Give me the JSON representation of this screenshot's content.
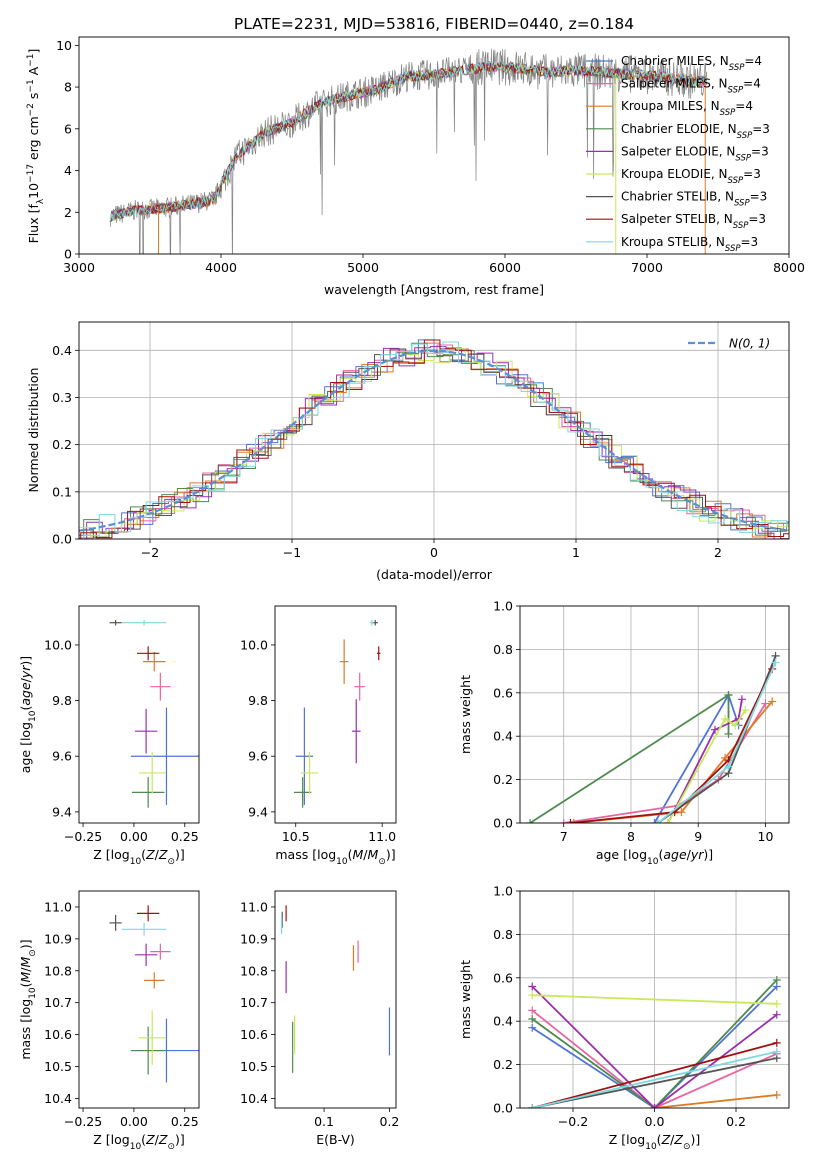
{
  "figure": {
    "title": "PLATE=2231, MJD=53816, FIBERID=0440, z=0.184"
  },
  "colors": {
    "Chabrier MILES": "#4f74d6",
    "Salpeter MILES": "#e8659f",
    "Kroupa MILES": "#e07a24",
    "Chabrier ELODIE": "#4f8a4f",
    "Salpeter ELODIE": "#9b2fb0",
    "Kroupa ELODIE": "#c9e85a",
    "Chabrier STELIB": "#555555",
    "Salpeter STELIB": "#a01010",
    "Kroupa STELIB": "#7fd9e0",
    "data": "#808080",
    "gaussian": "#5b8fd6"
  },
  "chart_data": [
    {
      "id": "spectrum",
      "type": "line",
      "title": "PLATE=2231, MJD=53816, FIBERID=0440, z=0.184",
      "xlabel": "wavelength [Angstrom, rest frame]",
      "ylabel": "Flux [f_λ 10^-17 erg cm^-2 s^-1 A^-1]",
      "xlim": [
        3000,
        8000
      ],
      "ylim": [
        0,
        10.4
      ],
      "xticks": [
        3000,
        4000,
        5000,
        6000,
        7000,
        8000
      ],
      "yticks": [
        0,
        2,
        4,
        6,
        8,
        10
      ],
      "legend_position": "top-right",
      "legend": [
        {
          "label": "Chabrier MILES, N_SSP=4",
          "base": "Chabrier MILES, N",
          "sub": "SSP",
          "tail": "=4"
        },
        {
          "label": "Salpeter MILES, N_SSP=4",
          "base": "Salpeter MILES, N",
          "sub": "SSP",
          "tail": "=4"
        },
        {
          "label": "Kroupa MILES, N_SSP=4",
          "base": "Kroupa MILES, N",
          "sub": "SSP",
          "tail": "=4"
        },
        {
          "label": "Chabrier ELODIE, N_SSP=3",
          "base": "Chabrier ELODIE, N",
          "sub": "SSP",
          "tail": "=3"
        },
        {
          "label": "Salpeter ELODIE, N_SSP=3",
          "base": "Salpeter ELODIE, N",
          "sub": "SSP",
          "tail": "=3"
        },
        {
          "label": "Kroupa ELODIE, N_SSP=3",
          "base": "Kroupa ELODIE, N",
          "sub": "SSP",
          "tail": "=3"
        },
        {
          "label": "Chabrier STELIB, N_SSP=3",
          "base": "Chabrier STELIB, N",
          "sub": "SSP",
          "tail": "=3"
        },
        {
          "label": "Salpeter STELIB, N_SSP=3",
          "base": "Salpeter STELIB, N",
          "sub": "SSP",
          "tail": "=3"
        },
        {
          "label": "Kroupa STELIB, N_SSP=3",
          "base": "Kroupa STELIB, N",
          "sub": "SSP",
          "tail": "=3"
        }
      ],
      "continuum_x": [
        3220,
        3400,
        3600,
        3800,
        3950,
        4100,
        4300,
        4500,
        4700,
        4900,
        5100,
        5300,
        5500,
        5700,
        5900,
        6100,
        6300,
        6500,
        6700,
        6900,
        7100,
        7300,
        7420
      ],
      "continuum_y": [
        1.8,
        2.1,
        2.2,
        2.4,
        2.6,
        4.6,
        5.8,
        6.3,
        7.2,
        7.6,
        7.9,
        8.5,
        8.6,
        8.8,
        9.0,
        8.9,
        8.7,
        8.8,
        8.7,
        8.6,
        8.5,
        8.3,
        8.3
      ]
    },
    {
      "id": "residuals",
      "type": "line",
      "xlabel": "(data-model)/error",
      "ylabel": "Normed distribution",
      "xlim": [
        -2.5,
        2.5
      ],
      "ylim": [
        0,
        0.46
      ],
      "xticks": [
        -2,
        -1,
        0,
        1,
        2
      ],
      "yticks": [
        0.0,
        0.1,
        0.2,
        0.3,
        0.4
      ],
      "legend_position": "top-right",
      "gaussian_label": "N(0, 1)",
      "grid": true
    },
    {
      "id": "age-vs-Z",
      "type": "scatter",
      "xlabel": "Z [log10(Z/Z⊙)]",
      "ylabel": "age [log10(age/yr)]",
      "xlim": [
        -0.27,
        0.32
      ],
      "ylim": [
        9.36,
        10.14
      ],
      "xticks": [
        -0.25,
        0.0,
        0.25
      ],
      "yticks": [
        9.4,
        9.6,
        9.8,
        10.0
      ],
      "points": [
        {
          "model": "Chabrier MILES",
          "x": 0.16,
          "y": 9.6,
          "xerr": 0.35,
          "yerr": 0.35
        },
        {
          "model": "Salpeter MILES",
          "x": 0.13,
          "y": 9.85,
          "xerr": 0.1,
          "yerr": 0.1
        },
        {
          "model": "Kroupa MILES",
          "x": 0.1,
          "y": 9.94,
          "xerr": 0.11,
          "yerr": 0.07
        },
        {
          "model": "Chabrier ELODIE",
          "x": 0.07,
          "y": 9.47,
          "xerr": 0.16,
          "yerr": 0.11
        },
        {
          "model": "Salpeter ELODIE",
          "x": 0.06,
          "y": 9.69,
          "xerr": 0.11,
          "yerr": 0.16
        },
        {
          "model": "Kroupa ELODIE",
          "x": 0.09,
          "y": 9.54,
          "xerr": 0.13,
          "yerr": 0.15
        },
        {
          "model": "Chabrier STELIB",
          "x": -0.09,
          "y": 10.08,
          "xerr": 0.06,
          "yerr": 0.02
        },
        {
          "model": "Salpeter STELIB",
          "x": 0.07,
          "y": 9.97,
          "xerr": 0.11,
          "yerr": 0.05
        },
        {
          "model": "Kroupa STELIB",
          "x": 0.05,
          "y": 10.08,
          "xerr": 0.22,
          "yerr": 0.02
        }
      ]
    },
    {
      "id": "age-vs-mass",
      "type": "scatter",
      "xlabel": "mass [log10(M/M⊙)]",
      "ylabel": "",
      "xlim": [
        10.38,
        11.08
      ],
      "ylim": [
        9.36,
        10.14
      ],
      "xticks": [
        10.5,
        11.0
      ],
      "yticks": [
        9.4,
        9.6,
        9.8,
        10.0
      ],
      "points": [
        {
          "model": "Chabrier MILES",
          "x": 10.55,
          "y": 9.6,
          "xerr": 0.1,
          "yerr": 0.35
        },
        {
          "model": "Salpeter MILES",
          "x": 10.87,
          "y": 9.85,
          "xerr": 0.06,
          "yerr": 0.1
        },
        {
          "model": "Kroupa MILES",
          "x": 10.78,
          "y": 9.94,
          "xerr": 0.05,
          "yerr": 0.16
        },
        {
          "model": "Chabrier ELODIE",
          "x": 10.54,
          "y": 9.47,
          "xerr": 0.1,
          "yerr": 0.11
        },
        {
          "model": "Salpeter ELODIE",
          "x": 10.85,
          "y": 9.69,
          "xerr": 0.05,
          "yerr": 0.23
        },
        {
          "model": "Kroupa ELODIE",
          "x": 10.58,
          "y": 9.54,
          "xerr": 0.1,
          "yerr": 0.15
        },
        {
          "model": "Chabrier STELIB",
          "x": 10.96,
          "y": 10.08,
          "xerr": 0.03,
          "yerr": 0.02
        },
        {
          "model": "Salpeter STELIB",
          "x": 10.98,
          "y": 9.97,
          "xerr": 0.02,
          "yerr": 0.05
        },
        {
          "model": "Kroupa STELIB",
          "x": 10.94,
          "y": 10.08,
          "xerr": 0.02,
          "yerr": 0.02
        }
      ]
    },
    {
      "id": "weight-vs-age",
      "type": "line",
      "xlabel": "age [log10(age/yr)]",
      "ylabel": "mass weight",
      "xlim": [
        6.35,
        10.35
      ],
      "ylim": [
        0,
        1.0
      ],
      "xticks": [
        7,
        8,
        9,
        10
      ],
      "yticks": [
        0.0,
        0.2,
        0.4,
        0.6,
        0.8,
        1.0
      ],
      "grid": true,
      "series": [
        {
          "model": "Chabrier MILES",
          "x": [
            8.35,
            9.45,
            9.6
          ],
          "y": [
            0.0,
            0.59,
            0.45
          ]
        },
        {
          "model": "Salpeter MILES",
          "x": [
            7.0,
            8.7,
            9.3,
            10.0
          ],
          "y": [
            0.0,
            0.08,
            0.2,
            0.55
          ]
        },
        {
          "model": "Kroupa MILES",
          "x": [
            7.15,
            8.75,
            9.4,
            10.1
          ],
          "y": [
            0.0,
            0.05,
            0.3,
            0.56
          ]
        },
        {
          "model": "Chabrier ELODIE",
          "x": [
            6.5,
            9.45,
            9.45
          ],
          "y": [
            0.0,
            0.59,
            0.41
          ]
        },
        {
          "model": "Salpeter ELODIE",
          "x": [
            8.55,
            9.25,
            9.6,
            9.65
          ],
          "y": [
            0.0,
            0.43,
            0.48,
            0.57
          ]
        },
        {
          "model": "Kroupa ELODIE",
          "x": [
            8.55,
            9.4,
            9.55,
            9.7
          ],
          "y": [
            0.0,
            0.48,
            0.45,
            0.52
          ]
        },
        {
          "model": "Chabrier STELIB",
          "x": [
            8.4,
            9.45,
            10.15
          ],
          "y": [
            0.0,
            0.23,
            0.77
          ]
        },
        {
          "model": "Salpeter STELIB",
          "x": [
            7.1,
            8.65,
            9.45,
            10.1
          ],
          "y": [
            0.0,
            0.05,
            0.29,
            0.71
          ]
        },
        {
          "model": "Kroupa STELIB",
          "x": [
            8.4,
            9.45,
            10.15
          ],
          "y": [
            0.0,
            0.26,
            0.74
          ]
        }
      ]
    },
    {
      "id": "mass-vs-Z",
      "type": "scatter",
      "xlabel": "Z [log10(Z/Z⊙)]",
      "ylabel": "mass [log10(M/M⊙)]",
      "xlim": [
        -0.27,
        0.32
      ],
      "ylim": [
        10.37,
        11.05
      ],
      "xticks": [
        -0.25,
        0.0,
        0.25
      ],
      "yticks": [
        10.4,
        10.5,
        10.6,
        10.7,
        10.8,
        10.9,
        11.0
      ],
      "points": [
        {
          "model": "Chabrier MILES",
          "x": 0.16,
          "y": 10.55,
          "xerr": 0.35,
          "yerr": 0.2
        },
        {
          "model": "Salpeter MILES",
          "x": 0.13,
          "y": 10.86,
          "xerr": 0.1,
          "yerr": 0.05
        },
        {
          "model": "Kroupa MILES",
          "x": 0.1,
          "y": 10.77,
          "xerr": 0.1,
          "yerr": 0.05
        },
        {
          "model": "Chabrier ELODIE",
          "x": 0.07,
          "y": 10.55,
          "xerr": 0.16,
          "yerr": 0.15
        },
        {
          "model": "Salpeter ELODIE",
          "x": 0.06,
          "y": 10.85,
          "xerr": 0.11,
          "yerr": 0.07
        },
        {
          "model": "Kroupa ELODIE",
          "x": 0.09,
          "y": 10.59,
          "xerr": 0.13,
          "yerr": 0.17
        },
        {
          "model": "Chabrier STELIB",
          "x": -0.09,
          "y": 10.95,
          "xerr": 0.06,
          "yerr": 0.05
        },
        {
          "model": "Salpeter STELIB",
          "x": 0.07,
          "y": 10.98,
          "xerr": 0.11,
          "yerr": 0.05
        },
        {
          "model": "Kroupa STELIB",
          "x": 0.05,
          "y": 10.93,
          "xerr": 0.22,
          "yerr": 0.04
        }
      ]
    },
    {
      "id": "mass-vs-ebv",
      "type": "scatter",
      "xlabel": "E(B-V)",
      "ylabel": "",
      "xlim": [
        0.025,
        0.21
      ],
      "ylim": [
        10.37,
        11.05
      ],
      "xticks": [
        0.1,
        0.2
      ],
      "yticks": [
        10.4,
        10.5,
        10.6,
        10.7,
        10.8,
        10.9,
        11.0
      ],
      "points": [
        {
          "model": "Chabrier MILES",
          "x": 0.2,
          "y": 10.61,
          "yerr": 0.15
        },
        {
          "model": "Salpeter MILES",
          "x": 0.152,
          "y": 10.86,
          "yerr": 0.07
        },
        {
          "model": "Kroupa MILES",
          "x": 0.145,
          "y": 10.84,
          "yerr": 0.08
        },
        {
          "model": "Chabrier ELODIE",
          "x": 0.052,
          "y": 10.56,
          "yerr": 0.16
        },
        {
          "model": "Salpeter ELODIE",
          "x": 0.042,
          "y": 10.78,
          "yerr": 0.1
        },
        {
          "model": "Kroupa ELODIE",
          "x": 0.055,
          "y": 10.6,
          "yerr": 0.12
        },
        {
          "model": "Chabrier STELIB",
          "x": 0.036,
          "y": 10.96,
          "yerr": 0.05
        },
        {
          "model": "Salpeter STELIB",
          "x": 0.042,
          "y": 10.98,
          "yerr": 0.05
        },
        {
          "model": "Kroupa STELIB",
          "x": 0.035,
          "y": 10.94,
          "yerr": 0.05
        }
      ]
    },
    {
      "id": "weight-vs-Z",
      "type": "line",
      "xlabel": "Z [log10(Z/Z⊙)]",
      "ylabel": "mass weight",
      "xlim": [
        -0.33,
        0.33
      ],
      "ylim": [
        0,
        1.0
      ],
      "xticks": [
        -0.2,
        0.0,
        0.2
      ],
      "yticks": [
        0.0,
        0.2,
        0.4,
        0.6,
        0.8,
        1.0
      ],
      "grid": true,
      "series": [
        {
          "model": "Chabrier MILES",
          "x": [
            -0.3,
            0.0,
            0.3
          ],
          "y": [
            0.37,
            0.0,
            0.56
          ]
        },
        {
          "model": "Salpeter MILES",
          "x": [
            -0.3,
            0.0,
            0.3
          ],
          "y": [
            0.45,
            0.0,
            0.25
          ]
        },
        {
          "model": "Kroupa MILES",
          "x": [
            0.0,
            0.3
          ],
          "y": [
            0.0,
            0.06
          ]
        },
        {
          "model": "Chabrier ELODIE",
          "x": [
            -0.3,
            0.0,
            0.3
          ],
          "y": [
            0.41,
            0.0,
            0.59
          ]
        },
        {
          "model": "Salpeter ELODIE",
          "x": [
            -0.3,
            0.0,
            0.3
          ],
          "y": [
            0.56,
            0.0,
            0.43
          ]
        },
        {
          "model": "Kroupa ELODIE",
          "x": [
            -0.3,
            0.3
          ],
          "y": [
            0.52,
            0.48
          ]
        },
        {
          "model": "Chabrier STELIB",
          "x": [
            -0.3,
            0.3
          ],
          "y": [
            0.0,
            0.23
          ]
        },
        {
          "model": "Salpeter STELIB",
          "x": [
            -0.3,
            0.3
          ],
          "y": [
            0.0,
            0.3
          ]
        },
        {
          "model": "Kroupa STELIB",
          "x": [
            -0.3,
            0.3
          ],
          "y": [
            0.0,
            0.26
          ]
        }
      ]
    }
  ]
}
